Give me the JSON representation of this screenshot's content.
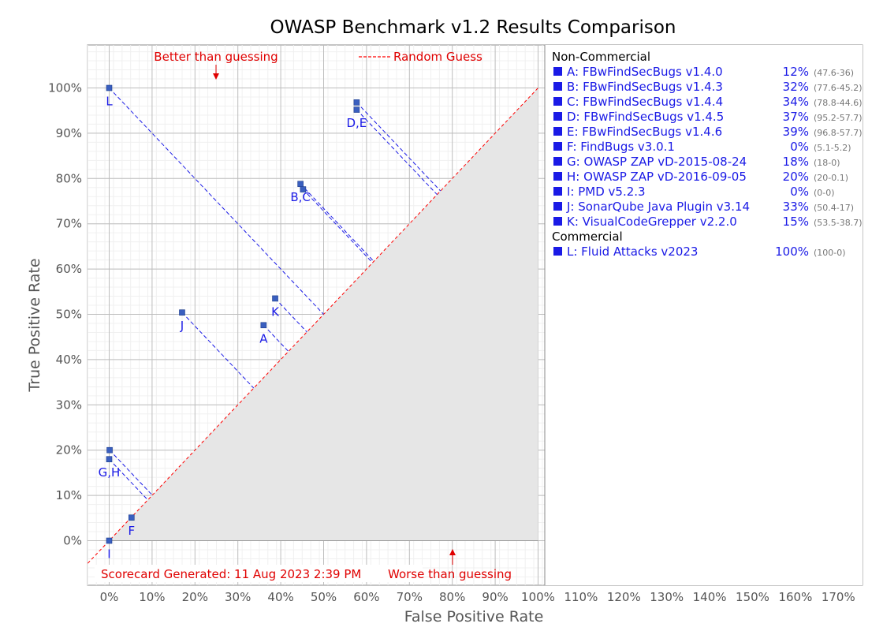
{
  "chart_data": {
    "type": "scatter",
    "title": "OWASP Benchmark v1.2 Results Comparison",
    "xlabel": "False Positive Rate",
    "ylabel": "True Positive Rate",
    "xlim": [
      -5,
      175
    ],
    "ylim": [
      -10,
      110
    ],
    "x_ticks": [
      "0%",
      "10%",
      "20%",
      "30%",
      "40%",
      "50%",
      "60%",
      "70%",
      "80%",
      "90%",
      "100%",
      "110%",
      "120%",
      "130%",
      "140%",
      "150%",
      "160%",
      "170%"
    ],
    "y_ticks": [
      "0%",
      "10%",
      "20%",
      "30%",
      "40%",
      "50%",
      "60%",
      "70%",
      "80%",
      "90%",
      "100%"
    ],
    "grid": true,
    "annotations": {
      "better": "Better than guessing",
      "worse": "Worse than guessing",
      "random_guess": "Random Guess",
      "generated": "Scorecard Generated: 11 Aug 2023 2:39 PM"
    },
    "colors": {
      "points": "#3a5fbf",
      "tool_text": "#1a1ae6",
      "diagonal": "#ff0000",
      "worse_region": "#e6e6e6",
      "annotation": "#e00000",
      "range_text": "#777777"
    },
    "points": [
      {
        "key": "A",
        "x": 36,
        "y": 47.6
      },
      {
        "key": "B",
        "x": 45.2,
        "y": 77.6
      },
      {
        "key": "C",
        "x": 44.6,
        "y": 78.8
      },
      {
        "key": "D",
        "x": 57.7,
        "y": 95.2
      },
      {
        "key": "E",
        "x": 57.7,
        "y": 96.8
      },
      {
        "key": "F",
        "x": 5.2,
        "y": 5.1
      },
      {
        "key": "G",
        "x": 0,
        "y": 18
      },
      {
        "key": "H",
        "x": 0.1,
        "y": 20
      },
      {
        "key": "I",
        "x": 0,
        "y": 0
      },
      {
        "key": "J",
        "x": 17,
        "y": 50.4
      },
      {
        "key": "K",
        "x": 38.7,
        "y": 53.5
      },
      {
        "key": "L",
        "x": 0,
        "y": 100
      }
    ],
    "point_labels": [
      {
        "text": "L",
        "x": 0,
        "y": 100
      },
      {
        "text": "D,E",
        "x": 57.7,
        "y": 95.2
      },
      {
        "text": "B,C",
        "x": 44.6,
        "y": 78.8
      },
      {
        "text": "K",
        "x": 38.7,
        "y": 53.5
      },
      {
        "text": "J",
        "x": 17,
        "y": 50.4
      },
      {
        "text": "A",
        "x": 36,
        "y": 47.6
      },
      {
        "text": "G,H",
        "x": 0,
        "y": 18
      },
      {
        "text": "F",
        "x": 5.2,
        "y": 5.1
      },
      {
        "text": "I",
        "x": 0,
        "y": 0
      }
    ],
    "legend": {
      "groups": [
        {
          "title": "Non-Commercial",
          "items": [
            {
              "label": "A: FBwFindSecBugs v1.4.0",
              "score": "12%",
              "range": "(47.6-36)"
            },
            {
              "label": "B: FBwFindSecBugs v1.4.3",
              "score": "32%",
              "range": "(77.6-45.2)"
            },
            {
              "label": "C: FBwFindSecBugs v1.4.4",
              "score": "34%",
              "range": "(78.8-44.6)"
            },
            {
              "label": "D: FBwFindSecBugs v1.4.5",
              "score": "37%",
              "range": "(95.2-57.7)"
            },
            {
              "label": "E: FBwFindSecBugs v1.4.6",
              "score": "39%",
              "range": "(96.8-57.7)"
            },
            {
              "label": "F: FindBugs v3.0.1",
              "score": "0%",
              "range": "(5.1-5.2)"
            },
            {
              "label": "G: OWASP ZAP vD-2015-08-24",
              "score": "18%",
              "range": "(18-0)"
            },
            {
              "label": "H: OWASP ZAP vD-2016-09-05",
              "score": "20%",
              "range": "(20-0.1)"
            },
            {
              "label": "I:   PMD v5.2.3",
              "score": "0%",
              "range": "(0-0)"
            },
            {
              "label": "J:  SonarQube Java Plugin v3.14",
              "score": "33%",
              "range": "(50.4-17)"
            },
            {
              "label": "K: VisualCodeGrepper v2.2.0",
              "score": "15%",
              "range": "(53.5-38.7)"
            }
          ]
        },
        {
          "title": "Commercial",
          "items": [
            {
              "label": "L: Fluid Attacks v2023",
              "score": "100%",
              "range": "(100-0)"
            }
          ]
        }
      ]
    }
  }
}
